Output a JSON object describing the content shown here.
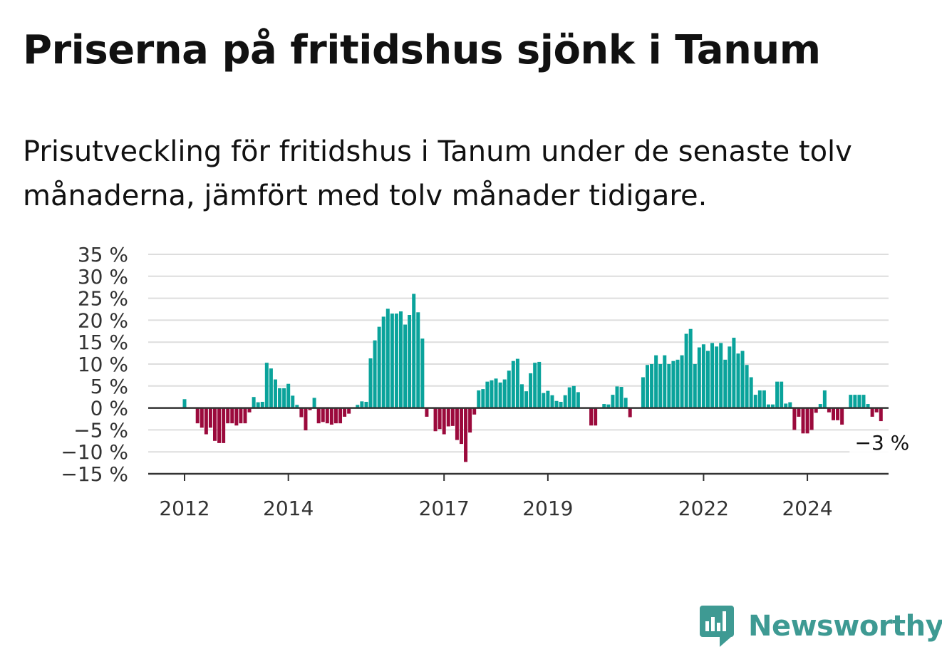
{
  "title": "Priserna på fritidshus sjönk i Tanum",
  "subtitle": "Prisutveckling för fritidshus i Tanum under de senaste tolv månaderna, jämfört med tolv månader tidigare.",
  "brand": {
    "name": "Newsworthy",
    "icon": "newsworthy-logo-icon"
  },
  "colors": {
    "positive": "#0aa39b",
    "negative": "#9b0a3c",
    "grid": "#dddddd",
    "axis": "#333333"
  },
  "chart_data": {
    "type": "bar",
    "start": "2012-01",
    "frequency": "monthly",
    "ylim": [
      -15,
      35
    ],
    "y_ticks": [
      {
        "value": 35,
        "label": "35 %"
      },
      {
        "value": 30,
        "label": "30 %"
      },
      {
        "value": 25,
        "label": "25 %"
      },
      {
        "value": 20,
        "label": "20 %"
      },
      {
        "value": 15,
        "label": "15 %"
      },
      {
        "value": 10,
        "label": "10 %"
      },
      {
        "value": 5,
        "label": "5 %"
      },
      {
        "value": 0,
        "label": "0 %"
      },
      {
        "value": -5,
        "label": "−5 %"
      },
      {
        "value": -10,
        "label": "−10 %"
      },
      {
        "value": -15,
        "label": "−15 %"
      }
    ],
    "x_ticks": [
      "2012",
      "2014",
      "2017",
      "2019",
      "2022",
      "2024"
    ],
    "values": [
      2,
      0,
      0,
      -3.5,
      -4.5,
      -6,
      -4.5,
      -7.5,
      -8,
      -8,
      -3.5,
      -3.5,
      -4,
      -3.5,
      -3.5,
      -1,
      2.5,
      1.3,
      1.4,
      10.3,
      9,
      6.5,
      4.5,
      4.5,
      5.5,
      2.8,
      0.7,
      -2.1,
      -5.1,
      -0.5,
      2.3,
      -3.5,
      -3.2,
      -3.5,
      -3.8,
      -3.5,
      -3.5,
      -2,
      -1.3,
      0,
      0.7,
      1.5,
      1.4,
      11.3,
      15.4,
      18.5,
      20.8,
      22.6,
      21.5,
      21.5,
      22,
      19,
      21.2,
      26,
      21.8,
      15.8,
      -2,
      0,
      -5.3,
      -4.8,
      -6,
      -4.2,
      -4.1,
      -7.3,
      -8.2,
      -12.3,
      -5.6,
      -1.5,
      4,
      4.3,
      6,
      6.3,
      6.7,
      5.8,
      6.5,
      8.5,
      10.7,
      11.2,
      5.4,
      3.8,
      7.9,
      10.3,
      10.5,
      3.4,
      3.9,
      2.9,
      1.6,
      1.4,
      2.9,
      4.7,
      5,
      3.6,
      0,
      0,
      -4,
      -4,
      0,
      0.9,
      0.8,
      3,
      4.9,
      4.8,
      2.3,
      -2.1,
      0,
      0,
      7,
      9.8,
      10,
      12,
      10,
      12,
      10,
      10.7,
      11,
      12,
      16.9,
      18,
      10,
      13.8,
      14.5,
      13,
      14.8,
      14,
      14.8,
      11,
      14,
      16,
      12.4,
      13,
      9.8,
      7,
      3,
      4,
      4,
      0.8,
      0.8,
      6,
      6,
      1,
      1.3,
      -5,
      -2,
      -5.8,
      -5.8,
      -5,
      -1.1,
      0.9,
      4,
      -1,
      -2.8,
      -2.8,
      -3.8,
      0,
      3,
      3,
      3,
      3,
      0.9,
      -2,
      -1,
      -3
    ],
    "annotation": {
      "label": "−3 %"
    }
  }
}
